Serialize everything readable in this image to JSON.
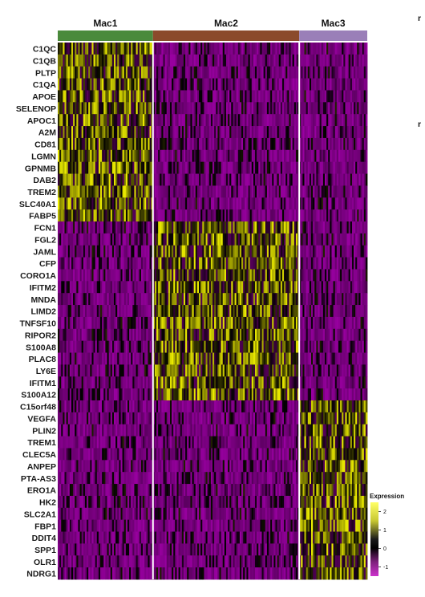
{
  "chart_data": {
    "type": "heatmap",
    "groups": [
      {
        "name": "Mac1",
        "color": "#4a8a3c",
        "cells": 56
      },
      {
        "name": "Mac2",
        "color": "#8b4a2b",
        "cells": 86
      },
      {
        "name": "Mac3",
        "color": "#9a7fb8",
        "cells": 40
      }
    ],
    "genes": [
      "C1QC",
      "C1QB",
      "PLTP",
      "C1QA",
      "APOE",
      "SELENOP",
      "APOC1",
      "A2M",
      "CD81",
      "LGMN",
      "GPNMB",
      "DAB2",
      "TREM2",
      "SLC40A1",
      "FABP5",
      "FCN1",
      "FGL2",
      "JAML",
      "CFP",
      "CORO1A",
      "IFITM2",
      "MNDA",
      "LIMD2",
      "TNFSF10",
      "RIPOR2",
      "S100A8",
      "PLAC8",
      "LY6E",
      "IFITM1",
      "S100A12",
      "C15orf48",
      "VEGFA",
      "PLIN2",
      "TREM1",
      "CLEC5A",
      "ANPEP",
      "PTA-AS3",
      "ERO1A",
      "HK2",
      "SLC2A1",
      "FBP1",
      "DDIT4",
      "SPP1",
      "OLR1",
      "NDRG1"
    ],
    "gene_markers": [
      "Mac1",
      "Mac1",
      "Mac1",
      "Mac1",
      "Mac1",
      "Mac1",
      "Mac1",
      "Mac1",
      "Mac1",
      "Mac1",
      "Mac1",
      "Mac1",
      "Mac1",
      "Mac1",
      "Mac1",
      "Mac2",
      "Mac2",
      "Mac2",
      "Mac2",
      "Mac2",
      "Mac2",
      "Mac2",
      "Mac2",
      "Mac2",
      "Mac2",
      "Mac2",
      "Mac2",
      "Mac2",
      "Mac2",
      "Mac2",
      "Mac3",
      "Mac3",
      "Mac3",
      "Mac3",
      "Mac3",
      "Mac3",
      "Mac3",
      "Mac3",
      "Mac3",
      "Mac3",
      "Mac3",
      "Mac3",
      "Mac3",
      "Mac3",
      "Mac3"
    ],
    "legend": {
      "title": "Expression",
      "ticks": [
        "2",
        "1",
        "0",
        "-1"
      ],
      "tick_values": [
        2,
        1,
        0,
        -1
      ],
      "range": [
        -1.5,
        2.5
      ],
      "colors": [
        "#ff00ff",
        "#000000",
        "#ffff00"
      ]
    },
    "panel_letters": [
      "r",
      "r"
    ]
  }
}
